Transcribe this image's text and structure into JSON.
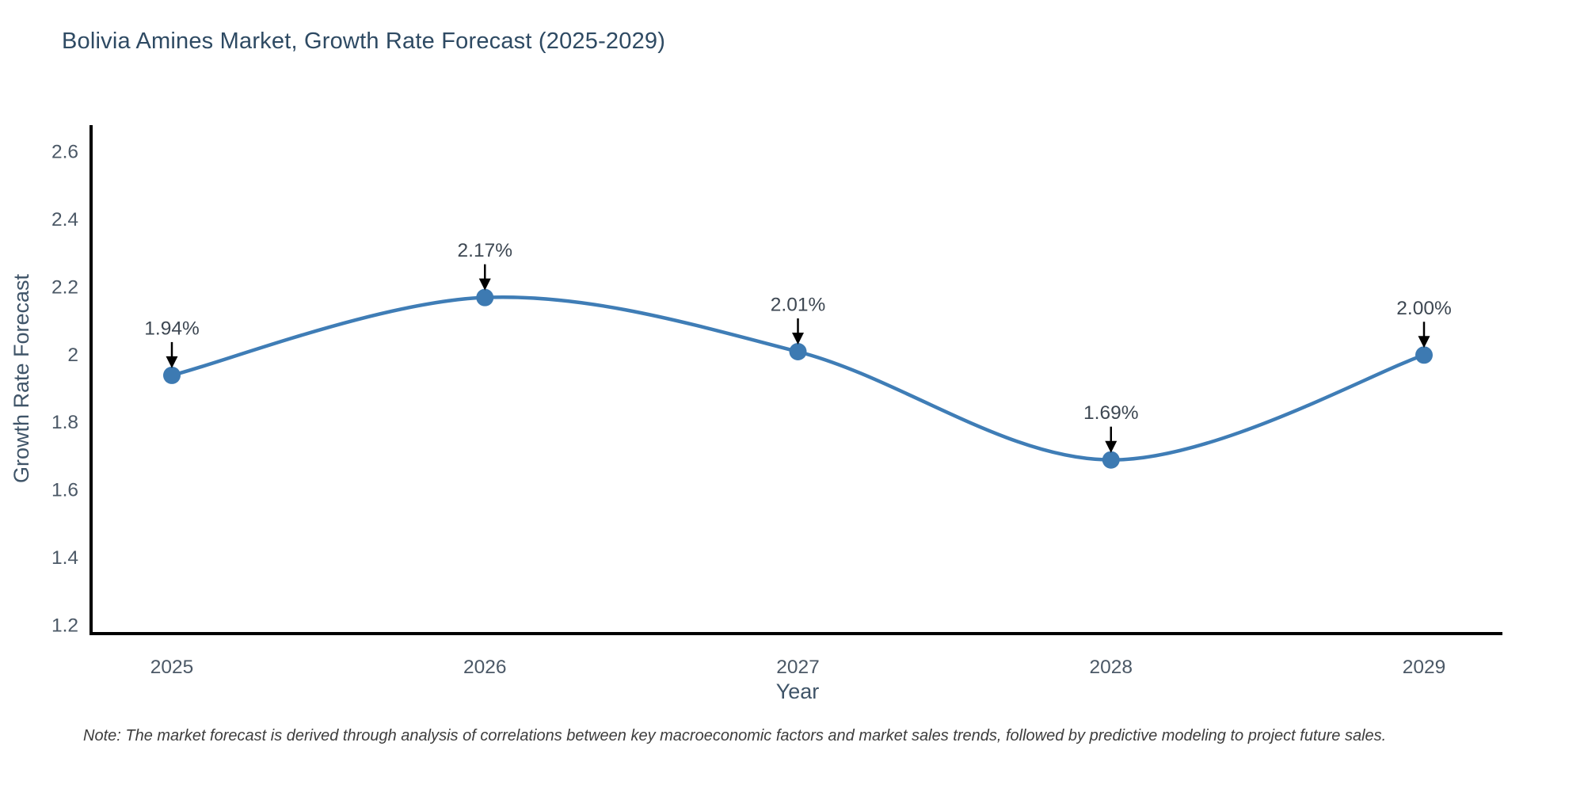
{
  "note": "Note: The market forecast is derived through analysis of correlations between key macroeconomic factors and market sales trends, followed by predictive modeling to project future sales.",
  "chart_data": {
    "type": "line",
    "title": "Bolivia Amines Market, Growth Rate Forecast (2025-2029)",
    "xlabel": "Year",
    "ylabel": "Growth Rate Forecast",
    "x": [
      "2025",
      "2026",
      "2027",
      "2028",
      "2029"
    ],
    "values": [
      1.94,
      2.17,
      2.01,
      1.69,
      2.0
    ],
    "point_labels": [
      "1.94%",
      "2.17%",
      "2.01%",
      "1.69%",
      "2.00%"
    ],
    "ylim": [
      1.2,
      2.6
    ],
    "ytick_values": [
      2.6,
      2.4,
      2.2,
      2.0,
      1.8,
      1.6,
      1.4,
      1.2
    ],
    "ytick_labels": [
      "2.6",
      "2.4",
      "2.2",
      "2",
      "1.8",
      "1.6",
      "1.4",
      "1.2"
    ],
    "line_shape": "spline",
    "grid": false,
    "legend": "none",
    "annotation_arrows": true,
    "colors": {
      "line": "#3f7db6",
      "marker": "#3d7ab2",
      "axis": "#000000",
      "title": "#2e4a63",
      "tick_label": "#4b5866",
      "axis_label": "#3f5468",
      "annotation": "#3d4752",
      "arrow": "#000000",
      "note": "#3d3d3d",
      "background": "#ffffff"
    }
  }
}
